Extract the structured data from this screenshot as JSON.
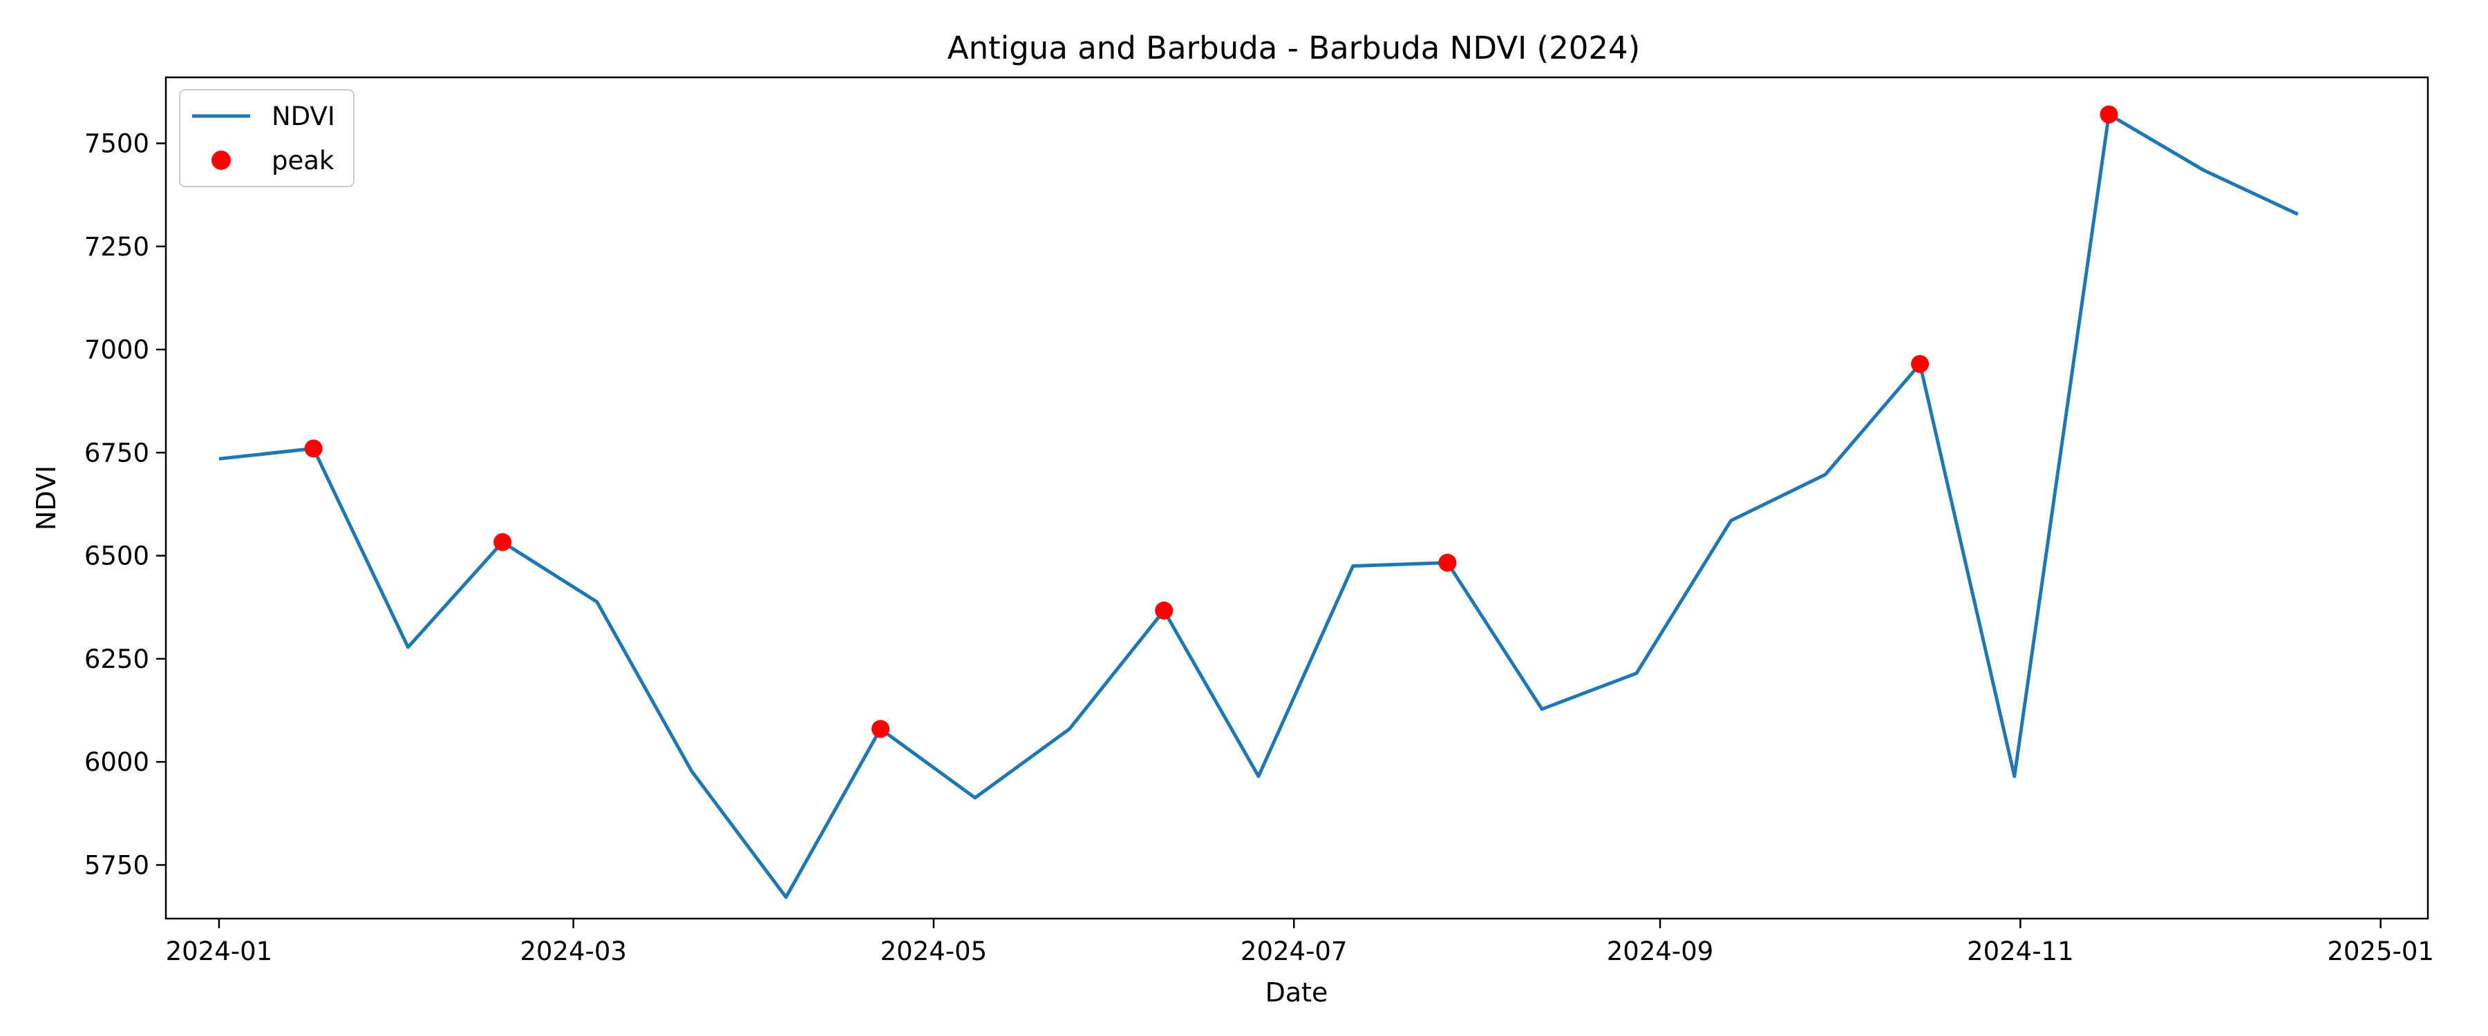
{
  "chart_data": {
    "type": "line",
    "title": "Antigua and Barbuda - Barbuda NDVI (2024)",
    "xlabel": "Date",
    "ylabel": "NDVI",
    "x_type": "date",
    "xlim": [
      "2023-12-23",
      "2025-01-09"
    ],
    "ylim": [
      5620,
      7660
    ],
    "x_ticks": [
      "2024-01-01",
      "2024-03-01",
      "2024-05-01",
      "2024-07-01",
      "2024-09-01",
      "2024-11-01",
      "2025-01-01"
    ],
    "x_tick_labels": [
      "2024-01",
      "2024-03",
      "2024-05",
      "2024-07",
      "2024-09",
      "2024-11",
      "2025-01"
    ],
    "y_ticks": [
      5750,
      6000,
      6250,
      6500,
      6750,
      7000,
      7250,
      7500
    ],
    "y_tick_labels": [
      "5750",
      "6000",
      "6250",
      "6500",
      "6750",
      "7000",
      "7250",
      "7500"
    ],
    "grid": false,
    "legend_position": "top-left",
    "series": [
      {
        "name": "NDVI",
        "kind": "line",
        "color": "#1f77b4",
        "x": [
          "2024-01-01",
          "2024-01-17",
          "2024-02-02",
          "2024-02-18",
          "2024-03-05",
          "2024-03-21",
          "2024-04-06",
          "2024-04-22",
          "2024-05-08",
          "2024-05-24",
          "2024-06-09",
          "2024-06-25",
          "2024-07-11",
          "2024-07-27",
          "2024-08-12",
          "2024-08-28",
          "2024-09-13",
          "2024-09-29",
          "2024-10-15",
          "2024-10-31",
          "2024-11-16",
          "2024-12-02",
          "2024-12-18"
        ],
        "y": [
          6735,
          6760,
          6278,
          6533,
          6388,
          5978,
          5672,
          6080,
          5913,
          6080,
          6367,
          5965,
          6475,
          6483,
          6128,
          6215,
          6585,
          6697,
          6965,
          5965,
          7570,
          7435,
          7328
        ]
      },
      {
        "name": "peak",
        "kind": "scatter",
        "color": "#ff0000",
        "x": [
          "2024-01-17",
          "2024-02-18",
          "2024-04-22",
          "2024-06-09",
          "2024-07-27",
          "2024-10-15",
          "2024-11-16"
        ],
        "y": [
          6760,
          6533,
          6080,
          6367,
          6483,
          6965,
          7570
        ]
      }
    ]
  }
}
